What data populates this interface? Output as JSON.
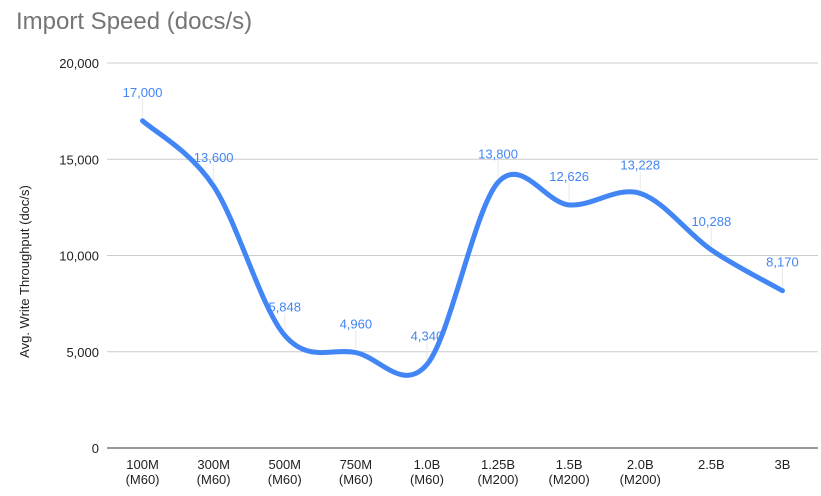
{
  "chart_data": {
    "type": "line",
    "title": "Import Speed (docs/s)",
    "xlabel": "",
    "ylabel": "Avg. Write Throughput (doc/s)",
    "ylim": [
      0,
      20000
    ],
    "yticks": [
      0,
      5000,
      10000,
      15000,
      20000
    ],
    "ytick_labels": [
      "0",
      "5,000",
      "10,000",
      "15,000",
      "20,000"
    ],
    "categories": [
      [
        "100M",
        "(M60)"
      ],
      [
        "300M",
        "(M60)"
      ],
      [
        "500M",
        "(M60)"
      ],
      [
        "750M",
        "(M60)"
      ],
      [
        "1.0B",
        "(M60)"
      ],
      [
        "1.25B",
        "(M200)"
      ],
      [
        "1.5B",
        "(M200)"
      ],
      [
        "2.0B",
        "(M200)"
      ],
      [
        "2.5B"
      ],
      [
        "3B"
      ]
    ],
    "values": [
      17000,
      13600,
      5848,
      4960,
      4340,
      13800,
      12626,
      13228,
      10288,
      8170
    ],
    "data_labels": [
      "17,000",
      "13,600",
      "5,848",
      "4,960",
      "4,340",
      "13,800",
      "12,626",
      "13,228",
      "10,288",
      "8,170"
    ],
    "line_color": "#4285f4",
    "label_color": "#4285f4",
    "grid": true,
    "legend": "none"
  }
}
